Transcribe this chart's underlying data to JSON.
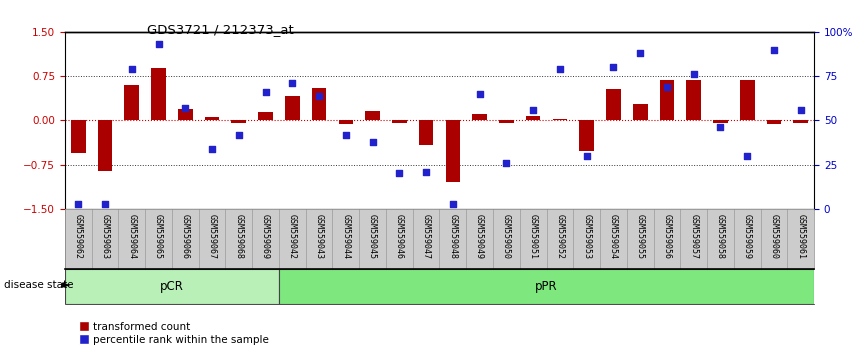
{
  "title": "GDS3721 / 212373_at",
  "samples": [
    "GSM559062",
    "GSM559063",
    "GSM559064",
    "GSM559065",
    "GSM559066",
    "GSM559067",
    "GSM559068",
    "GSM559069",
    "GSM559042",
    "GSM559043",
    "GSM559044",
    "GSM559045",
    "GSM559046",
    "GSM559047",
    "GSM559048",
    "GSM559049",
    "GSM559050",
    "GSM559051",
    "GSM559052",
    "GSM559053",
    "GSM559054",
    "GSM559055",
    "GSM559056",
    "GSM559057",
    "GSM559058",
    "GSM559059",
    "GSM559060",
    "GSM559061"
  ],
  "bar_values": [
    -0.55,
    -0.85,
    0.6,
    0.88,
    0.2,
    0.05,
    -0.04,
    0.14,
    0.42,
    0.55,
    -0.07,
    0.16,
    -0.04,
    -0.42,
    -1.05,
    0.1,
    -0.04,
    0.08,
    0.02,
    -0.52,
    0.54,
    0.28,
    0.68,
    0.68,
    -0.04,
    0.68,
    -0.07,
    -0.04
  ],
  "percentile_values": [
    3,
    3,
    79,
    93,
    57,
    34,
    42,
    66,
    71,
    64,
    42,
    38,
    20,
    21,
    3,
    65,
    26,
    56,
    79,
    30,
    80,
    88,
    69,
    76,
    46,
    30,
    90,
    56
  ],
  "groups": [
    {
      "name": "pCR",
      "start": 0,
      "end": 8,
      "color": "#b8f0b8"
    },
    {
      "name": "pPR",
      "start": 8,
      "end": 28,
      "color": "#7ee87e"
    }
  ],
  "disease_state_label": "disease state",
  "ylim_left": [
    -1.5,
    1.5
  ],
  "ylim_right": [
    0,
    100
  ],
  "yticks_left": [
    -1.5,
    -0.75,
    0,
    0.75,
    1.5
  ],
  "yticks_right": [
    0,
    25,
    50,
    75,
    100
  ],
  "hlines_dotted": [
    -0.75,
    0.75
  ],
  "zero_hline": 0,
  "bar_color": "#aa0000",
  "dot_color": "#2222cc",
  "zero_line_color": "#cc0000",
  "background_color": "#ffffff",
  "tick_bg_color": "#cccccc"
}
